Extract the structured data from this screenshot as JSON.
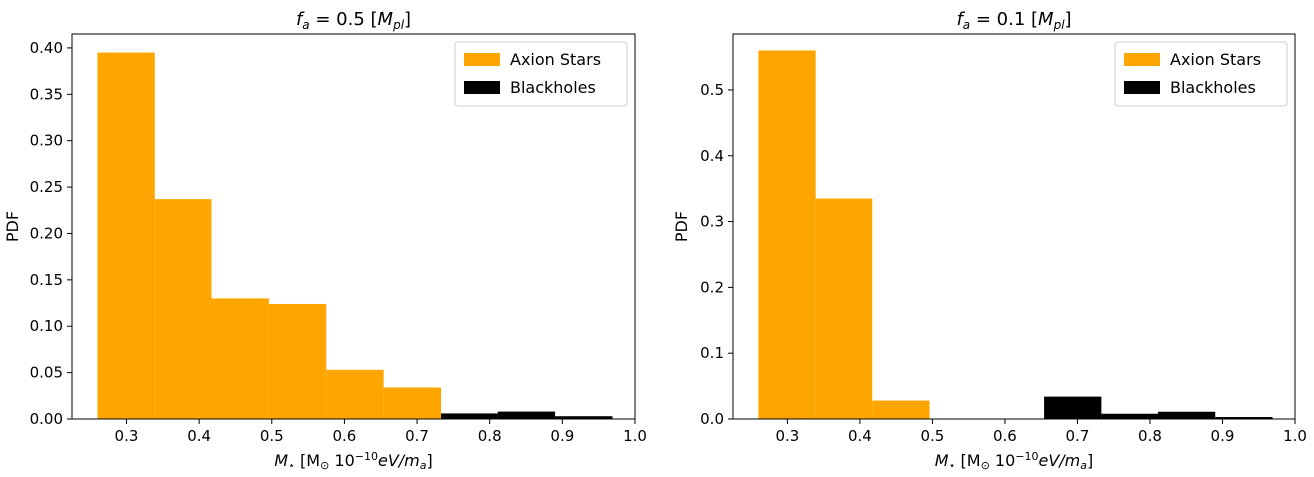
{
  "chart_data": [
    {
      "type": "bar",
      "title_prefix": "f",
      "title_sub": "a",
      "title_value": " = 0.5 [",
      "title_unit": "M",
      "title_unit_sub": "pl",
      "title_suffix": "]",
      "ylabel": "PDF",
      "xlabel_prefix": "M",
      "xlabel_sub": "⋆",
      "xlabel_bracket_open": " [M",
      "xlabel_sun": "⊙",
      "xlabel_pow": " 10",
      "xlabel_exp": "−10",
      "xlabel_rest": "eV/m",
      "xlabel_rest_sub": "a",
      "xlabel_close": "]",
      "xlim": [
        0.225,
        1.0
      ],
      "ylim": [
        0,
        0.415
      ],
      "x_ticks": [
        "0.3",
        "0.4",
        "0.5",
        "0.6",
        "0.7",
        "0.8",
        "0.9",
        "1.0"
      ],
      "y_ticks": [
        "0.00",
        "0.05",
        "0.10",
        "0.15",
        "0.20",
        "0.25",
        "0.30",
        "0.35",
        "0.40"
      ],
      "legend_position": "upper right",
      "series": [
        {
          "name": "Axion Stars",
          "color": "#FFA500",
          "bins": [
            {
              "x0": 0.26,
              "x1": 0.339,
              "value": 0.395
            },
            {
              "x0": 0.339,
              "x1": 0.417,
              "value": 0.237
            },
            {
              "x0": 0.417,
              "x1": 0.496,
              "value": 0.13
            },
            {
              "x0": 0.496,
              "x1": 0.575,
              "value": 0.124
            },
            {
              "x0": 0.575,
              "x1": 0.654,
              "value": 0.053
            },
            {
              "x0": 0.654,
              "x1": 0.733,
              "value": 0.034
            }
          ]
        },
        {
          "name": "Blackholes",
          "color": "#000000",
          "bins": [
            {
              "x0": 0.733,
              "x1": 0.811,
              "value": 0.006
            },
            {
              "x0": 0.811,
              "x1": 0.89,
              "value": 0.008
            },
            {
              "x0": 0.89,
              "x1": 0.969,
              "value": 0.003
            }
          ]
        }
      ]
    },
    {
      "type": "bar",
      "title_prefix": "f",
      "title_sub": "a",
      "title_value": " = 0.1 [",
      "title_unit": "M",
      "title_unit_sub": "pl",
      "title_suffix": "]",
      "ylabel": "PDF",
      "xlabel_prefix": "M",
      "xlabel_sub": "⋆",
      "xlabel_bracket_open": " [M",
      "xlabel_sun": "⊙",
      "xlabel_pow": " 10",
      "xlabel_exp": "−10",
      "xlabel_rest": "eV/m",
      "xlabel_rest_sub": "a",
      "xlabel_close": "]",
      "xlim": [
        0.225,
        1.0
      ],
      "ylim": [
        0,
        0.585
      ],
      "x_ticks": [
        "0.3",
        "0.4",
        "0.5",
        "0.6",
        "0.7",
        "0.8",
        "0.9",
        "1.0"
      ],
      "y_ticks": [
        "0.0",
        "0.1",
        "0.2",
        "0.3",
        "0.4",
        "0.5"
      ],
      "legend_position": "upper right",
      "series": [
        {
          "name": "Axion Stars",
          "color": "#FFA500",
          "bins": [
            {
              "x0": 0.26,
              "x1": 0.339,
              "value": 0.56
            },
            {
              "x0": 0.339,
              "x1": 0.417,
              "value": 0.335
            },
            {
              "x0": 0.417,
              "x1": 0.496,
              "value": 0.028
            }
          ]
        },
        {
          "name": "Blackholes",
          "color": "#000000",
          "bins": [
            {
              "x0": 0.654,
              "x1": 0.733,
              "value": 0.034
            },
            {
              "x0": 0.733,
              "x1": 0.811,
              "value": 0.008
            },
            {
              "x0": 0.811,
              "x1": 0.89,
              "value": 0.011
            },
            {
              "x0": 0.89,
              "x1": 0.969,
              "value": 0.003
            }
          ]
        }
      ]
    }
  ]
}
